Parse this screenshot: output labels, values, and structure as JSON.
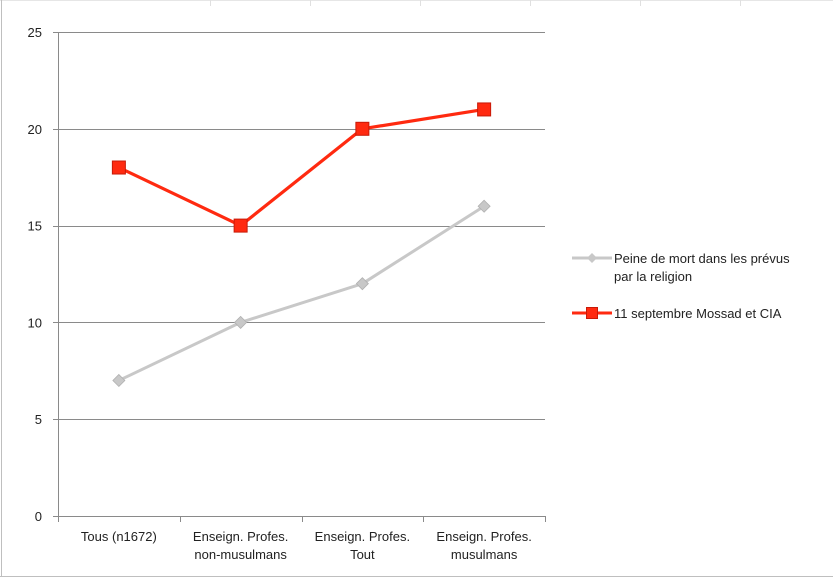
{
  "chart_data": {
    "type": "line",
    "title": "",
    "xlabel": "",
    "ylabel": "",
    "categories": [
      [
        "Tous (n1672)"
      ],
      [
        "Enseign. Profes.",
        "non-musulmans"
      ],
      [
        "Enseign. Profes.",
        "Tout"
      ],
      [
        "Enseign. Profes.",
        "musulmans"
      ]
    ],
    "ylim": [
      0,
      25
    ],
    "yticks": [
      "0",
      "5",
      "10",
      "15",
      "20",
      "25"
    ],
    "grid": true,
    "legend_position": "right",
    "series": [
      {
        "name": "Peine de mort dans les prévus par la religion",
        "name_lines": [
          "Peine de mort dans les prévus",
          "par la religion"
        ],
        "values": [
          7,
          10,
          12,
          16
        ],
        "color": "#c8c8c8",
        "marker": "diamond"
      },
      {
        "name": "11 septembre Mossad et CIA",
        "name_lines": [
          "11 septembre Mossad et CIA"
        ],
        "values": [
          18,
          15,
          20,
          21
        ],
        "color": "#ff2a10",
        "marker": "square"
      }
    ]
  }
}
